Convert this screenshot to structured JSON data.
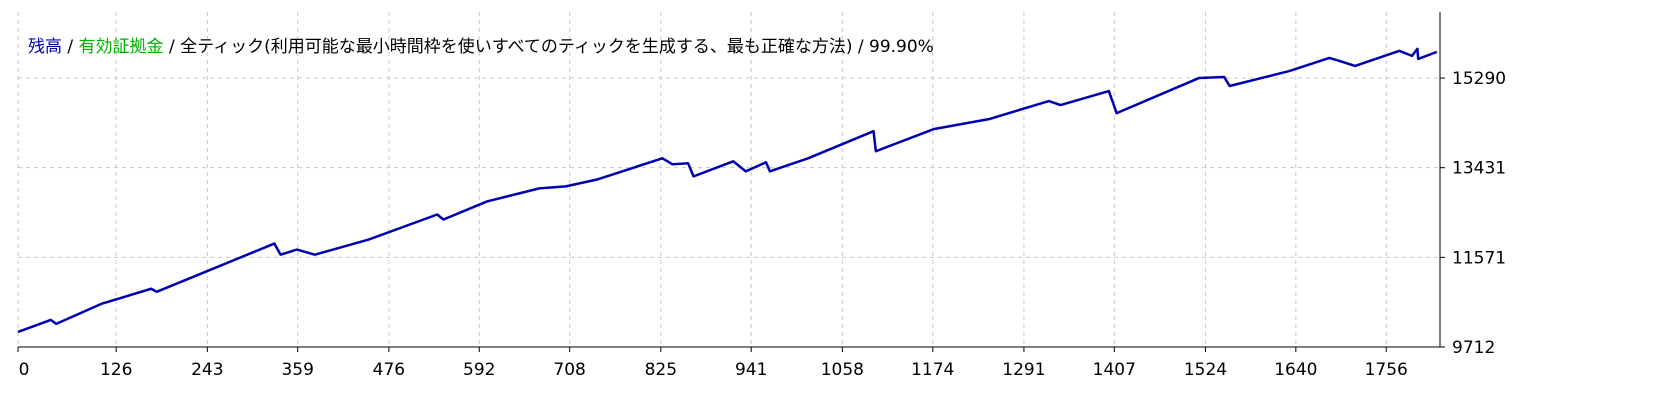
{
  "chart_data": {
    "type": "line",
    "legend": [
      {
        "name": "残高",
        "color": "#0000b0"
      },
      {
        "name": "有効証拠金",
        "color": "#00b000"
      }
    ],
    "separator": " / ",
    "subtitle": "全ティック(利用可能な最小時間枠を使いすべてのティックを生成する、最も正確な方法)",
    "quality": "99.90%",
    "x": [
      0,
      42,
      49,
      107,
      171,
      178,
      329,
      337,
      358,
      381,
      450,
      538,
      546,
      602,
      669,
      703,
      744,
      827,
      840,
      860,
      867,
      918,
      934,
      960,
      965,
      1014,
      1098,
      1101,
      1175,
      1246,
      1323,
      1338,
      1400,
      1410,
      1516,
      1548,
      1555,
      1632,
      1683,
      1696,
      1716,
      1773,
      1789,
      1796,
      1797,
      1821
    ],
    "series": [
      {
        "name": "残高",
        "color": "#0000b0",
        "values": [
          10024,
          10274,
          10191,
          10607,
          10920,
          10857,
          11857,
          11627,
          11732,
          11627,
          11940,
          12460,
          12356,
          12731,
          13002,
          13043,
          13189,
          13626,
          13501,
          13522,
          13251,
          13564,
          13355,
          13543,
          13355,
          13626,
          14188,
          13772,
          14230,
          14438,
          14813,
          14730,
          15021,
          14563,
          15292,
          15313,
          15125,
          15438,
          15708,
          15646,
          15542,
          15854,
          15750,
          15896,
          15687,
          15833
        ]
      }
    ],
    "xlim": [
      0,
      1825
    ],
    "xticks": [
      0,
      126,
      243,
      359,
      476,
      592,
      708,
      825,
      941,
      1058,
      1174,
      1291,
      1407,
      1524,
      1640,
      1756
    ],
    "ylim": [
      9712,
      16660
    ],
    "yticks": [
      9712,
      11571,
      13431,
      15290
    ],
    "grid": true
  }
}
